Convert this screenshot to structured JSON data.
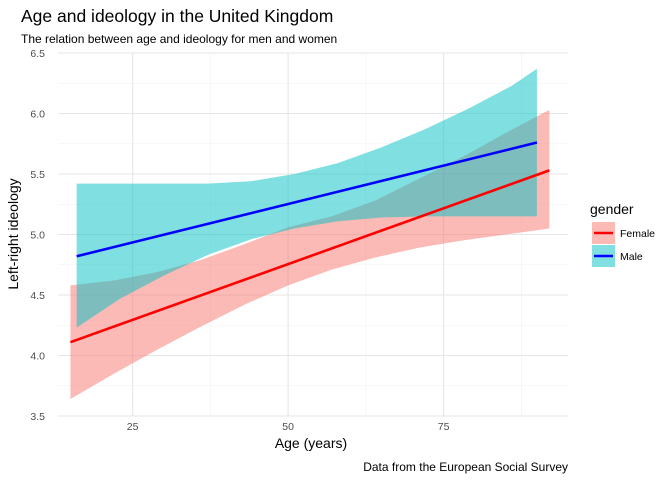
{
  "chart_data": {
    "type": "line",
    "title": "Age and ideology in the United Kingdom",
    "subtitle": "The relation between age and ideology for men and women",
    "xlabel": "Age (years)",
    "ylabel": "Left-right ideology",
    "caption": "Data from the European Social Survey",
    "xlim": [
      13,
      95
    ],
    "ylim": [
      3.5,
      6.5
    ],
    "x_ticks": [
      25,
      50,
      75
    ],
    "x_tick_labels": [
      "25",
      "50",
      "75"
    ],
    "y_ticks": [
      3.5,
      4.0,
      4.5,
      5.0,
      5.5,
      6.0,
      6.5
    ],
    "y_tick_labels": [
      "3.5",
      "4.0",
      "4.5",
      "5.0",
      "5.5",
      "6.0",
      "6.5"
    ],
    "grid": true,
    "legend": {
      "title": "gender",
      "position": "right",
      "entries": [
        "Female",
        "Male"
      ]
    },
    "series": [
      {
        "name": "Female",
        "color": "#ff0000",
        "band_color": "#f8766d",
        "x": [
          15,
          92
        ],
        "y": [
          4.11,
          5.53
        ],
        "band": {
          "x": [
            15,
            22,
            29,
            36,
            43,
            50,
            57,
            64,
            71,
            78,
            85,
            92
          ],
          "lower": [
            3.64,
            3.85,
            4.05,
            4.24,
            4.42,
            4.58,
            4.71,
            4.81,
            4.89,
            4.95,
            5.0,
            5.05
          ],
          "upper": [
            4.58,
            4.62,
            4.69,
            4.79,
            4.92,
            5.06,
            5.15,
            5.28,
            5.46,
            5.64,
            5.84,
            6.03
          ]
        }
      },
      {
        "name": "Male",
        "color": "#0000ff",
        "band_color": "#00bfc4",
        "x": [
          16,
          90
        ],
        "y": [
          4.82,
          5.76
        ],
        "band": {
          "x": [
            16,
            23,
            30,
            37,
            44,
            51,
            58,
            65,
            72,
            79,
            86,
            90
          ],
          "lower": [
            4.23,
            4.47,
            4.66,
            4.83,
            4.96,
            5.05,
            5.11,
            5.14,
            5.15,
            5.15,
            5.15,
            5.15
          ],
          "upper": [
            5.42,
            5.42,
            5.42,
            5.42,
            5.44,
            5.5,
            5.59,
            5.72,
            5.87,
            6.04,
            6.23,
            6.37
          ]
        }
      }
    ]
  }
}
